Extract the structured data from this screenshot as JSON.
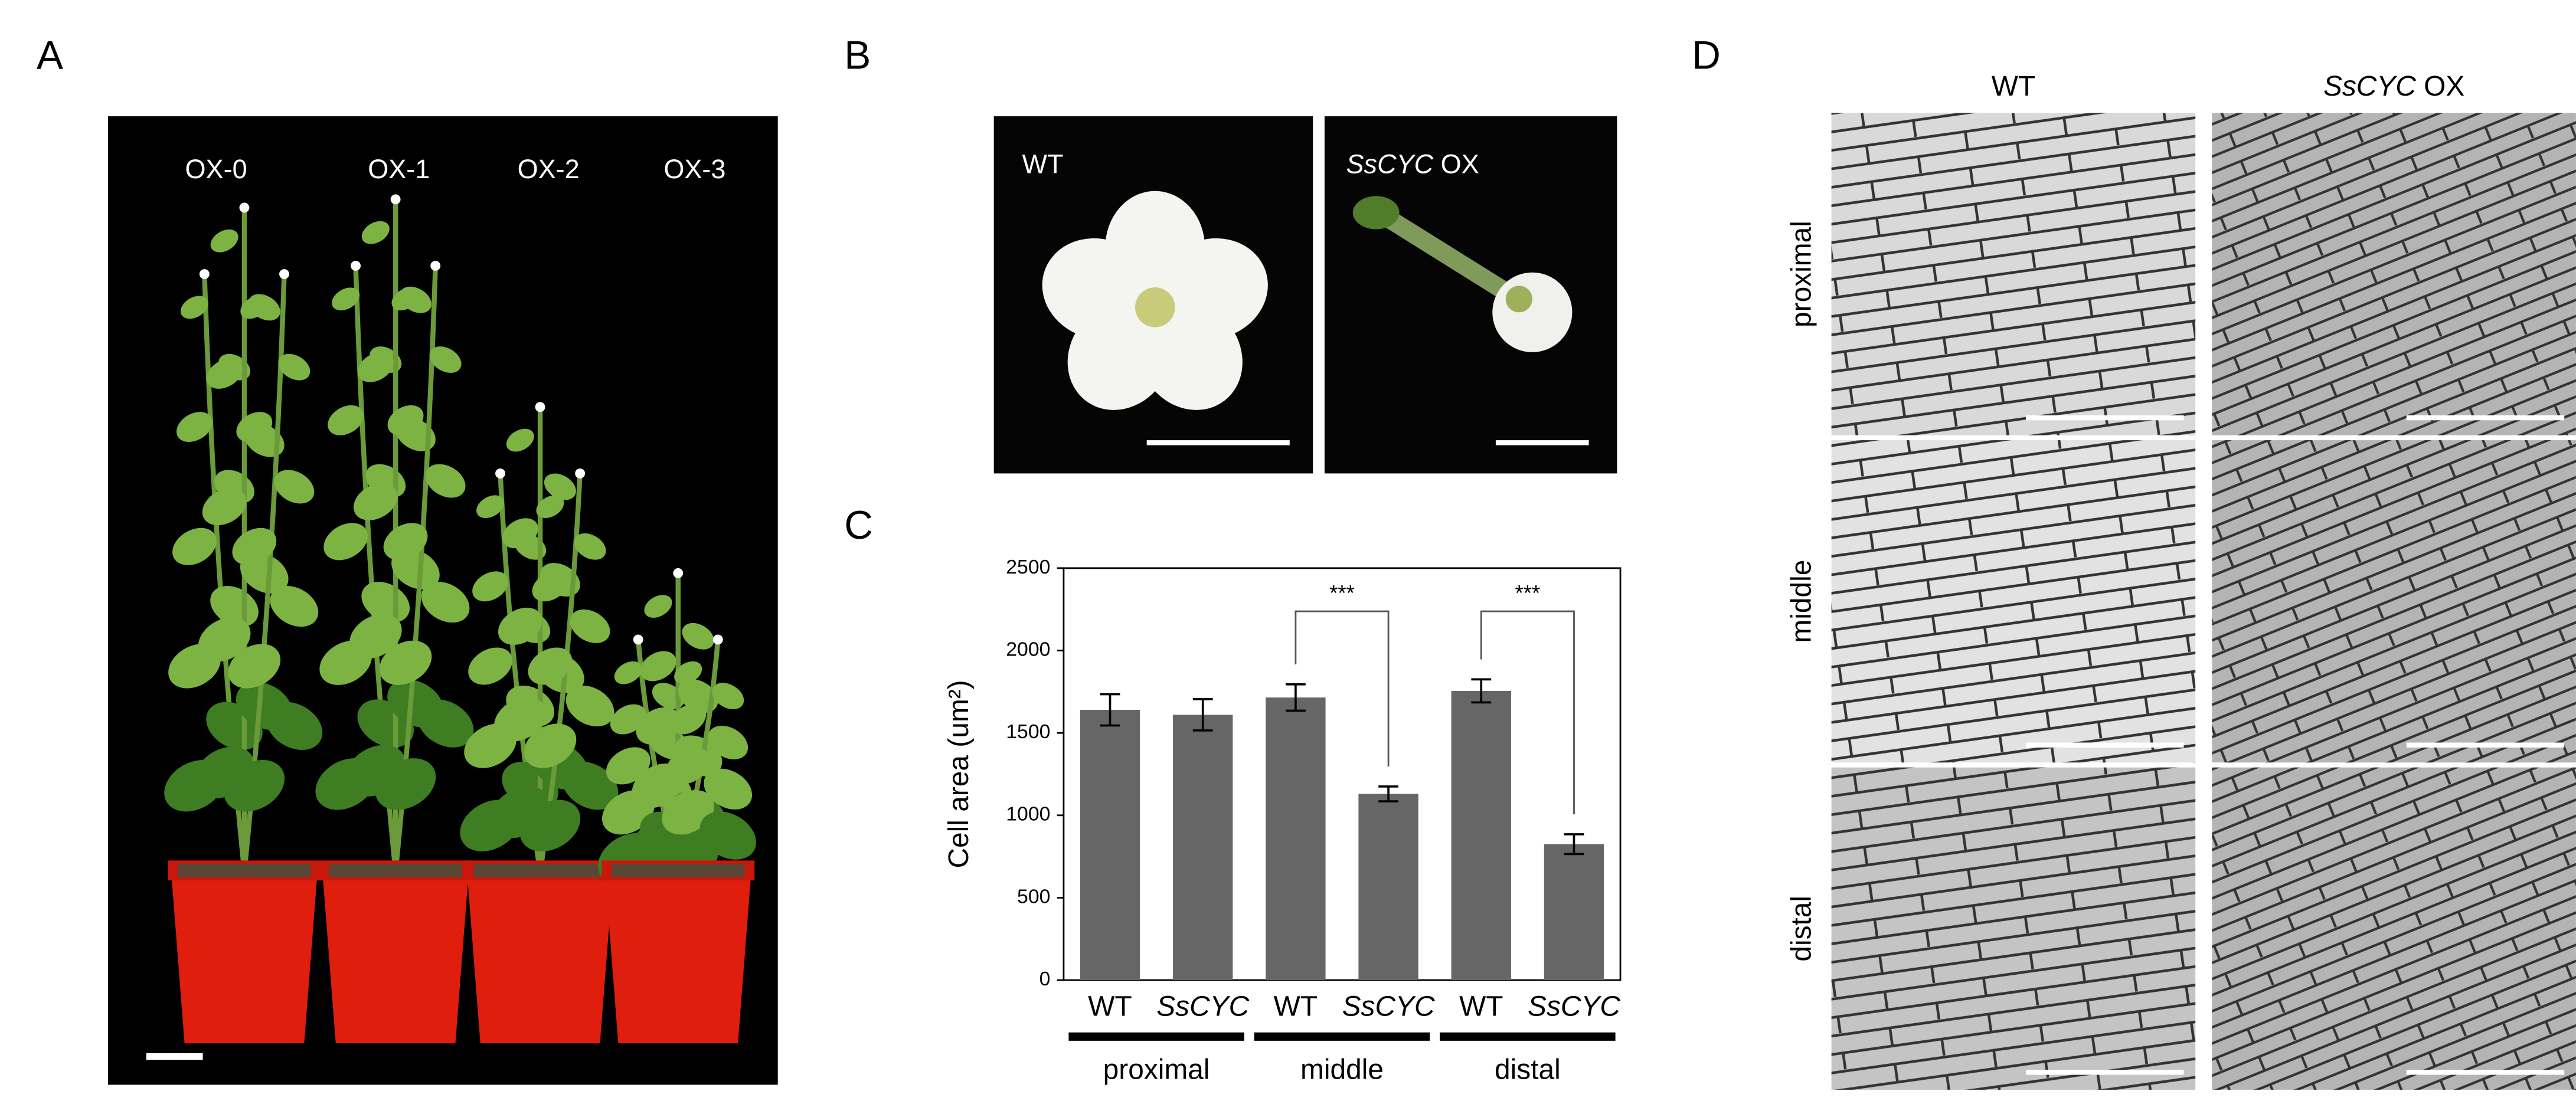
{
  "panels": {
    "A": {
      "label": "A",
      "plants": [
        "OX-0",
        "OX-1",
        "OX-2",
        "OX-3"
      ]
    },
    "B": {
      "label": "B",
      "images": [
        "WT",
        "SsCYC OX"
      ]
    },
    "C": {
      "label": "C"
    },
    "D": {
      "label": "D",
      "columns": [
        "WT",
        "SsCYC OX"
      ],
      "rows": [
        "proximal",
        "middle",
        "distal"
      ]
    }
  },
  "chart_data": {
    "type": "bar",
    "y_label": "Cell area (um²)",
    "categories": [
      "WT",
      "SsCYC",
      "WT",
      "SsCYC",
      "WT",
      "SsCYC"
    ],
    "values": [
      1640,
      1610,
      1715,
      1130,
      1755,
      825
    ],
    "errors": [
      95,
      95,
      80,
      45,
      70,
      60
    ],
    "color": "#666666",
    "groups": [
      "proximal",
      "middle",
      "distal"
    ],
    "annotations": [
      "***",
      "***"
    ],
    "ylim": [
      0,
      2500
    ],
    "yticks": [
      0,
      500,
      1000,
      1500,
      2000,
      2500
    ]
  }
}
